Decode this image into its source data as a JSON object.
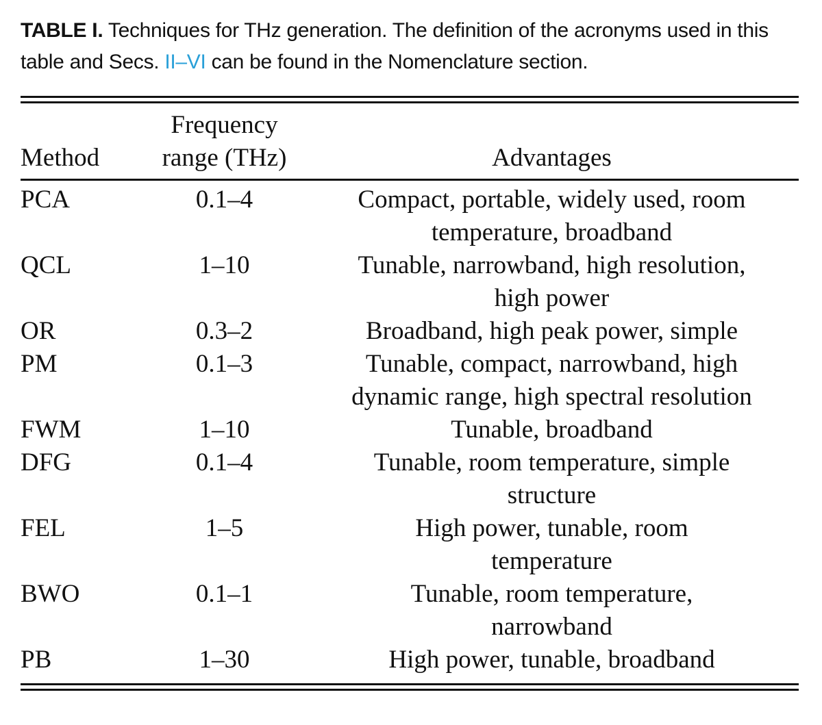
{
  "caption": {
    "label": "TABLE I.",
    "text_before_ref": " Techniques for THz generation. The definition of the acronyms used in this table and Secs. ",
    "ref": "II–VI",
    "text_after_ref": " can be found in the Nomenclature section."
  },
  "table": {
    "headers": {
      "method": "Method",
      "frequency_line1": "Frequency",
      "frequency_line2": "range (THz)",
      "advantages": "Advantages"
    },
    "rows": [
      {
        "method": "PCA",
        "range": "0.1–4",
        "advantages_line1": "Compact, portable, widely used, room",
        "advantages_line2": "temperature, broadband"
      },
      {
        "method": "QCL",
        "range": "1–10",
        "advantages_line1": "Tunable, narrowband, high resolution,",
        "advantages_line2": "high power"
      },
      {
        "method": "OR",
        "range": "0.3–2",
        "advantages_line1": "Broadband, high peak power, simple",
        "advantages_line2": ""
      },
      {
        "method": "PM",
        "range": "0.1–3",
        "advantages_line1": "Tunable, compact, narrowband, high",
        "advantages_line2": "dynamic range, high spectral resolution"
      },
      {
        "method": "FWM",
        "range": "1–10",
        "advantages_line1": "Tunable, broadband",
        "advantages_line2": ""
      },
      {
        "method": "DFG",
        "range": "0.1–4",
        "advantages_line1": "Tunable, room temperature, simple",
        "advantages_line2": "structure"
      },
      {
        "method": "FEL",
        "range": "1–5",
        "advantages_line1": "High power, tunable, room",
        "advantages_line2": "temperature"
      },
      {
        "method": "BWO",
        "range": "0.1–1",
        "advantages_line1": "Tunable, room temperature,",
        "advantages_line2": "narrowband"
      },
      {
        "method": "PB",
        "range": "1–30",
        "advantages_line1": "High power, tunable, broadband",
        "advantages_line2": ""
      }
    ]
  }
}
